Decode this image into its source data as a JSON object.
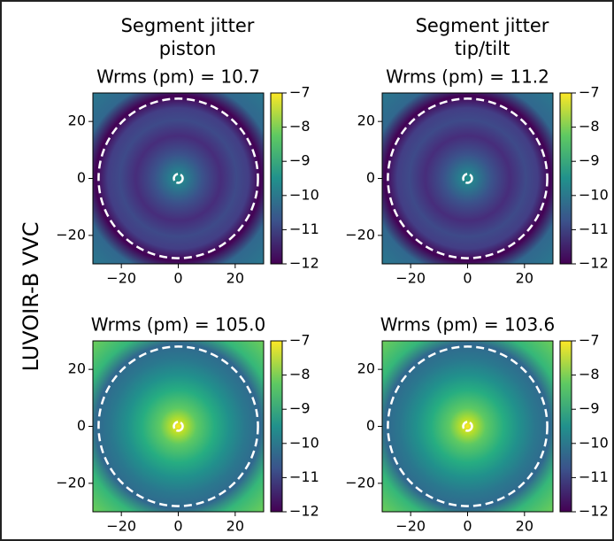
{
  "column_titles": [
    [
      "Segment jitter",
      "piston"
    ],
    [
      "Segment jitter",
      "tip/tilt"
    ]
  ],
  "row_label": "LUVOIR-B VVC",
  "chart_data": [
    {
      "type": "heatmap",
      "title": "Wrms (pm) = 10.7",
      "colormap": "viridis",
      "xlim": [
        -30,
        30
      ],
      "ylim": [
        -30,
        30
      ],
      "xticks": [
        {
          "value": -20,
          "label": "−20"
        },
        0,
        20
      ],
      "yticks": [
        {
          "value": -20,
          "label": "−20"
        },
        0,
        20
      ],
      "clim": [
        -12,
        -7
      ],
      "cticks": [
        {
          "value": -7,
          "label": "−7"
        },
        {
          "value": -8,
          "label": "−8"
        },
        {
          "value": -9,
          "label": "−9"
        },
        {
          "value": -10,
          "label": "−10"
        },
        {
          "value": -11,
          "label": "−11"
        },
        {
          "value": -12,
          "label": "−12"
        }
      ]
    },
    {
      "type": "heatmap",
      "title": "Wrms (pm) = 11.2",
      "colormap": "viridis",
      "xlim": [
        -30,
        30
      ],
      "ylim": [
        -30,
        30
      ],
      "xticks": [
        {
          "value": -20,
          "label": "−20"
        },
        0,
        20
      ],
      "yticks": [
        {
          "value": -20,
          "label": "−20"
        },
        0,
        20
      ],
      "clim": [
        -12,
        -7
      ],
      "cticks": [
        {
          "value": -7,
          "label": "−7"
        },
        {
          "value": -8,
          "label": "−8"
        },
        {
          "value": -9,
          "label": "−9"
        },
        {
          "value": -10,
          "label": "−10"
        },
        {
          "value": -11,
          "label": "−11"
        },
        {
          "value": -12,
          "label": "−12"
        }
      ]
    },
    {
      "type": "heatmap",
      "title": "Wrms (pm) = 105.0",
      "colormap": "viridis",
      "xlim": [
        -30,
        30
      ],
      "ylim": [
        -30,
        30
      ],
      "xticks": [
        {
          "value": -20,
          "label": "−20"
        },
        0,
        20
      ],
      "yticks": [
        {
          "value": -20,
          "label": "−20"
        },
        0,
        20
      ],
      "clim": [
        -12,
        -7
      ],
      "cticks": [
        {
          "value": -7,
          "label": "−7"
        },
        {
          "value": -8,
          "label": "−8"
        },
        {
          "value": -9,
          "label": "−9"
        },
        {
          "value": -10,
          "label": "−10"
        },
        {
          "value": -11,
          "label": "−11"
        },
        {
          "value": -12,
          "label": "−12"
        }
      ]
    },
    {
      "type": "heatmap",
      "title": "Wrms (pm) = 103.6",
      "colormap": "viridis",
      "xlim": [
        -30,
        30
      ],
      "ylim": [
        -30,
        30
      ],
      "xticks": [
        {
          "value": -20,
          "label": "−20"
        },
        0,
        20
      ],
      "yticks": [
        {
          "value": -20,
          "label": "−20"
        },
        0,
        20
      ],
      "clim": [
        -12,
        -7
      ],
      "cticks": [
        {
          "value": -7,
          "label": "−7"
        },
        {
          "value": -8,
          "label": "−8"
        },
        {
          "value": -9,
          "label": "−9"
        },
        {
          "value": -10,
          "label": "−10"
        },
        {
          "value": -11,
          "label": "−11"
        },
        {
          "value": -12,
          "label": "−12"
        }
      ]
    }
  ]
}
